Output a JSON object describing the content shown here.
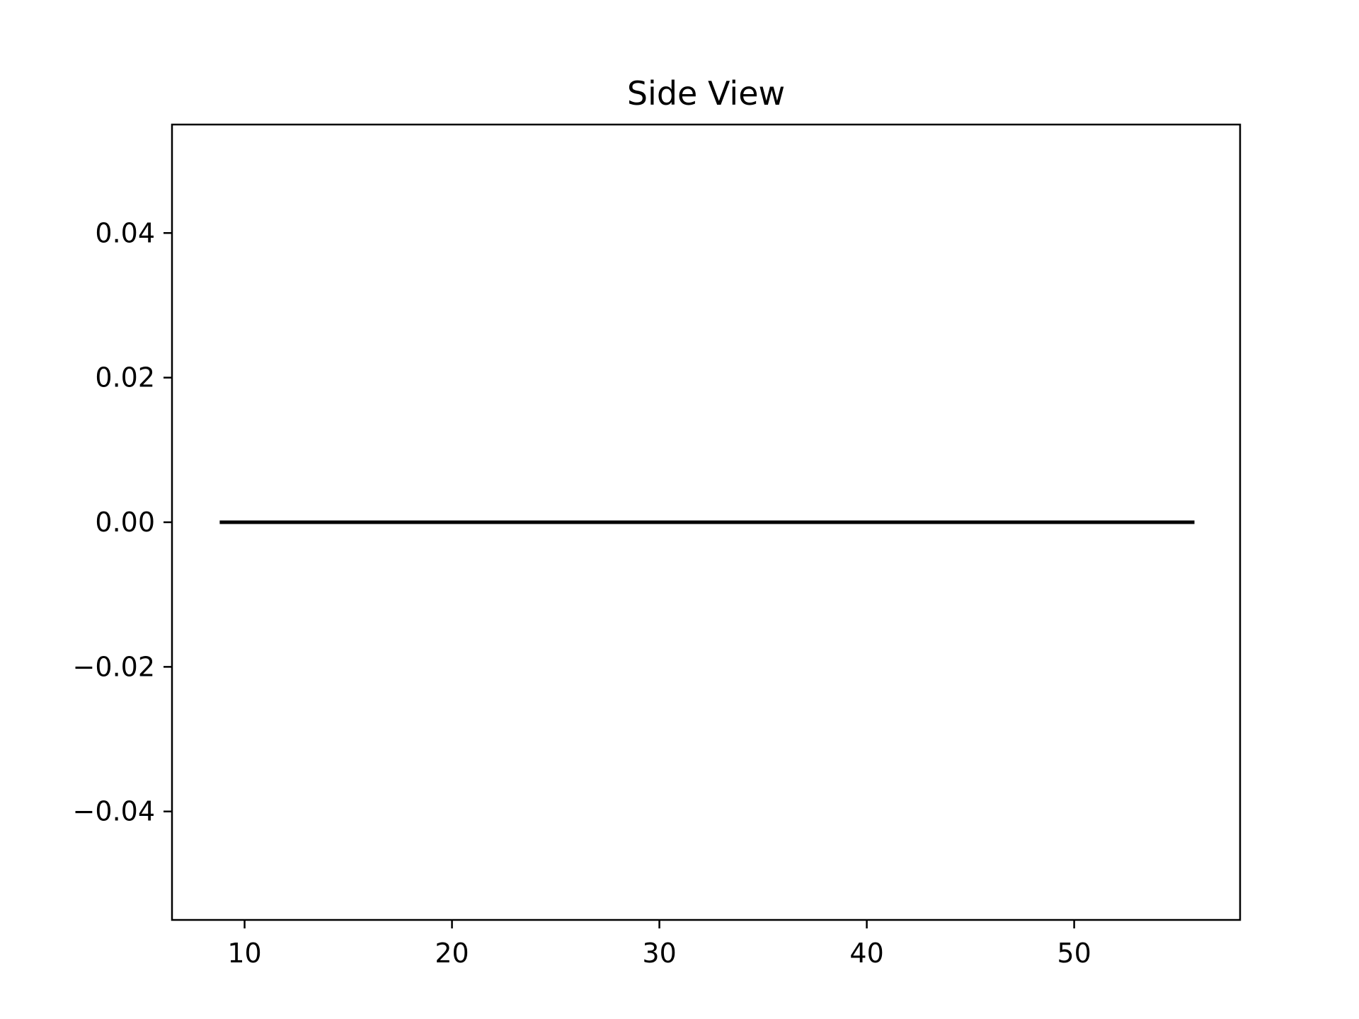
{
  "chart_data": {
    "type": "line",
    "title": "Side View",
    "xlabel": "",
    "ylabel": "",
    "xlim": [
      6.5,
      58.0
    ],
    "ylim": [
      -0.055,
      0.055
    ],
    "x_ticks": [
      10,
      20,
      30,
      40,
      50
    ],
    "x_tick_labels": [
      "10",
      "20",
      "30",
      "40",
      "50"
    ],
    "y_ticks": [
      0.04,
      0.02,
      0.0,
      -0.02,
      -0.04
    ],
    "y_tick_labels": [
      "0.04",
      "0.02",
      "0.00",
      "−0.02",
      "−0.04"
    ],
    "grid": false,
    "legend": "none",
    "series": [
      {
        "color": "#000000",
        "x": [
          8.8,
          55.8
        ],
        "y": [
          0.0,
          0.0
        ]
      }
    ]
  }
}
